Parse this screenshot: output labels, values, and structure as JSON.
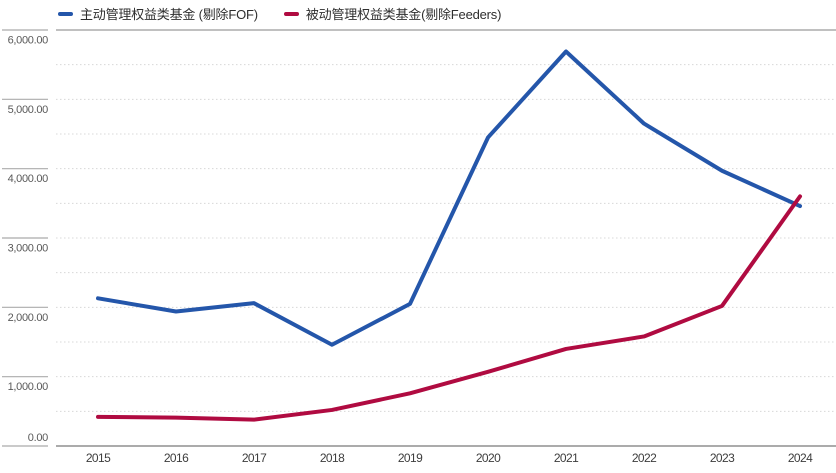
{
  "legend": {
    "items": [
      {
        "label": "主动管理权益类基金 (剔除FOF)",
        "color": "#2456AA"
      },
      {
        "label": "被动管理权益类基金(剔除Feeders)",
        "color": "#B00B41"
      }
    ]
  },
  "colors": {
    "active_series": "#2456AA",
    "passive_series": "#B00B41",
    "minor_gridline": "#D8D8D8",
    "top_gridline": "#9A9A9A",
    "x_axis_line": "#8F8F8F",
    "y_tick_line": "#ABABAB",
    "y_label_text": "#595959",
    "x_label_text": "#3D3D3D",
    "background": "#FFFFFF"
  },
  "chart_data": {
    "type": "line",
    "x": [
      "2015",
      "2016",
      "2017",
      "2018",
      "2019",
      "2020",
      "2021",
      "2022",
      "2023",
      "2024"
    ],
    "series": [
      {
        "name": "主动管理权益类基金 (剔除FOF)",
        "color": "#2456AA",
        "values": [
          2130,
          1940,
          2060,
          1460,
          2050,
          4450,
          5690,
          4650,
          3970,
          3460
        ]
      },
      {
        "name": "被动管理权益类基金(剔除Feeders)",
        "color": "#B00B41",
        "values": [
          420,
          410,
          380,
          520,
          760,
          1070,
          1400,
          1580,
          2020,
          3600
        ]
      }
    ],
    "title": "",
    "xlabel": "",
    "ylabel": "",
    "ylim": [
      0,
      6000
    ],
    "y_major_step": 1000,
    "y_minor_step": 500,
    "y_tick_labels": [
      "0.00",
      "1,000.00",
      "2,000.00",
      "3,000.00",
      "4,000.00",
      "5,000.00",
      "6,000.00"
    ],
    "grid": "dotted horizontal lines every 500; solid line at top (6000) and bottom axis (0)",
    "legend_position": "top-left"
  }
}
